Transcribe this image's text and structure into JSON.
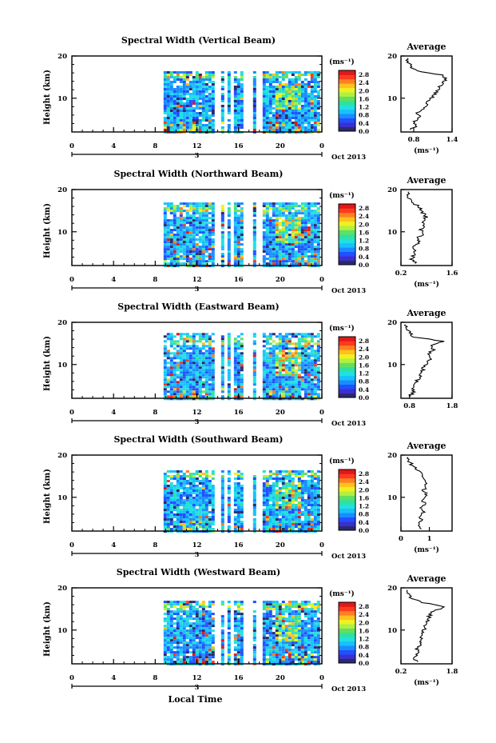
{
  "chart_data": {
    "type": "heatmap",
    "xlabel": "Local Time",
    "date_label": "Oct 2013",
    "day_label": "3",
    "x_ticks": [
      "0",
      "4",
      "8",
      "12",
      "16",
      "20",
      "0"
    ],
    "xlim_hours": [
      0,
      24
    ],
    "ylabel": "Height (km)",
    "y_ticks": [
      "20",
      "10"
    ],
    "ylim_km": [
      2,
      20
    ],
    "colorbar": {
      "unit_label": "(ms⁻¹)",
      "ticks": [
        "2.8",
        "2.4",
        "2.0",
        "1.6",
        "1.2",
        "0.8",
        "0.4",
        "0.0"
      ],
      "range": [
        0.0,
        3.0
      ],
      "colors": [
        "#2a2a6e",
        "#3a2fd0",
        "#2050ff",
        "#1a8cff",
        "#18c0ff",
        "#20e0e0",
        "#30e0a0",
        "#60e060",
        "#b0f040",
        "#f0f020",
        "#ffc020",
        "#ff8020",
        "#ff3a20",
        "#e01818"
      ]
    },
    "data_coverage_hours": [
      8.8,
      23.8
    ],
    "gap_hours": [
      [
        13.7,
        14.3
      ],
      [
        14.6,
        15.0
      ],
      [
        15.3,
        15.6
      ],
      [
        16.5,
        17.3
      ],
      [
        17.6,
        18.3
      ]
    ],
    "panels": [
      {
        "title": "Spectral Width (Vertical Beam)",
        "avg": {
          "title": "Average",
          "xlabel": "(ms⁻¹)",
          "x_ticks": [
            "0.8",
            "1.4"
          ],
          "xlim": [
            0.6,
            1.4
          ],
          "y_ticks": [
            "20",
            "10"
          ],
          "ylim": [
            2,
            20
          ],
          "profile": {
            "height_km": [
              2.5,
              3.5,
              4.5,
              5.5,
              6.5,
              7.5,
              8.5,
              9.5,
              10.5,
              11.5,
              12.5,
              13.5,
              14.5,
              15.5,
              16.5,
              17.5,
              18.5,
              19.5
            ],
            "value": [
              0.75,
              0.85,
              0.8,
              0.9,
              0.85,
              0.95,
              1.0,
              1.05,
              1.1,
              1.15,
              1.2,
              1.25,
              1.3,
              1.25,
              0.85,
              0.75,
              0.72,
              0.7
            ]
          }
        }
      },
      {
        "title": "Spectral Width (Northward Beam)",
        "avg": {
          "title": "Average",
          "xlabel": "(ms⁻¹)",
          "x_ticks": [
            "0.2",
            "1.6"
          ],
          "xlim": [
            0.2,
            1.6
          ],
          "y_ticks": [
            "20",
            "10"
          ],
          "ylim": [
            2,
            20
          ],
          "profile": {
            "height_km": [
              2.5,
              3.5,
              4.5,
              5.5,
              6.5,
              7.5,
              8.5,
              9.5,
              10.5,
              11.5,
              12.5,
              13.5,
              14.5,
              15.5,
              16.5,
              17.5,
              18.5,
              19.5
            ],
            "value": [
              0.6,
              0.5,
              0.55,
              0.6,
              0.5,
              0.7,
              0.65,
              0.8,
              0.75,
              0.85,
              0.8,
              0.9,
              0.8,
              0.75,
              0.6,
              0.45,
              0.35,
              0.4
            ]
          }
        }
      },
      {
        "title": "Spectral Width (Eastward Beam)",
        "avg": {
          "title": "Average",
          "xlabel": "",
          "x_ticks": [
            "0.8",
            "1.8"
          ],
          "xlim": [
            0.6,
            1.8
          ],
          "y_ticks": [
            "20",
            "10"
          ],
          "ylim": [
            2,
            20
          ],
          "profile": {
            "height_km": [
              2.5,
              3.5,
              4.5,
              5.5,
              6.5,
              7.5,
              8.5,
              9.5,
              10.5,
              11.5,
              12.5,
              13.5,
              14.5,
              15.5,
              16.5,
              17.5,
              18.5,
              19.5
            ],
            "value": [
              0.8,
              0.9,
              0.85,
              0.95,
              1.0,
              1.05,
              1.1,
              1.15,
              1.2,
              1.3,
              1.25,
              1.35,
              1.3,
              1.6,
              0.9,
              0.8,
              0.75,
              0.7
            ]
          }
        }
      },
      {
        "title": "Spectral Width (Southward Beam)",
        "avg": {
          "title": "Average",
          "xlabel": "(ms⁻¹)",
          "x_ticks": [
            "0",
            "1"
          ],
          "xlim": [
            0.0,
            1.8
          ],
          "y_ticks": [
            "20",
            "10"
          ],
          "ylim": [
            2,
            20
          ],
          "profile": {
            "height_km": [
              2.5,
              3.5,
              4.5,
              5.5,
              6.5,
              7.5,
              8.5,
              9.5,
              10.5,
              11.5,
              12.5,
              13.5,
              14.5,
              15.5,
              16.5,
              17.5,
              18.5,
              19.5
            ],
            "value": [
              0.7,
              0.6,
              0.75,
              0.65,
              0.8,
              0.7,
              0.85,
              0.75,
              0.9,
              0.8,
              0.85,
              0.9,
              0.8,
              0.7,
              0.55,
              0.4,
              0.3,
              0.25
            ]
          }
        }
      },
      {
        "title": "Spectral Width (Westward Beam)",
        "avg": {
          "title": "Average",
          "xlabel": "(ms⁻¹)",
          "x_ticks": [
            "0.2",
            "1.8"
          ],
          "xlim": [
            0.2,
            1.8
          ],
          "y_ticks": [
            "20",
            "10"
          ],
          "ylim": [
            2,
            20
          ],
          "profile": {
            "height_km": [
              2.5,
              3.5,
              4.5,
              5.5,
              6.5,
              7.5,
              8.5,
              9.5,
              10.5,
              11.5,
              12.5,
              13.5,
              14.5,
              15.5,
              16.5,
              17.5,
              18.5,
              19.5
            ],
            "value": [
              0.7,
              0.6,
              0.75,
              0.7,
              0.8,
              0.85,
              0.8,
              0.9,
              0.95,
              1.0,
              1.05,
              1.1,
              1.2,
              1.6,
              0.9,
              0.5,
              0.45,
              0.4
            ]
          }
        }
      }
    ]
  }
}
